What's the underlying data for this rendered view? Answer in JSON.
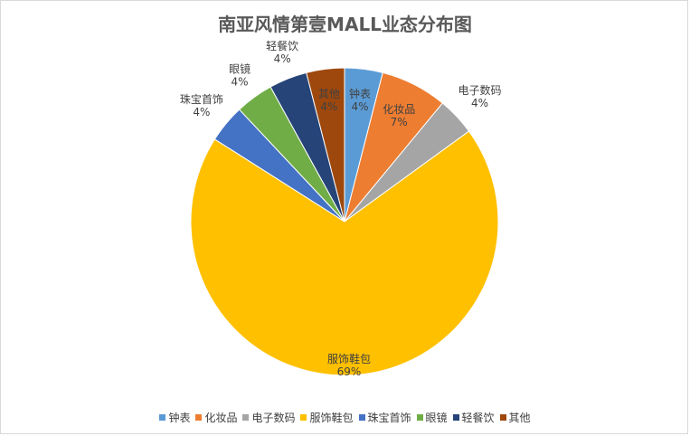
{
  "chart_data": {
    "type": "pie",
    "title": "南亚风情第壹MALL业态分布图",
    "categories": [
      "钟表",
      "化妆品",
      "电子数码",
      "服饰鞋包",
      "珠宝首饰",
      "眼镜",
      "轻餐饮",
      "其他"
    ],
    "values": [
      4,
      7,
      4,
      69,
      4,
      4,
      4,
      4
    ],
    "value_labels": [
      "4%",
      "7%",
      "4%",
      "69%",
      "4%",
      "4%",
      "4%",
      "4%"
    ],
    "colors": [
      "#5b9bd5",
      "#ed7d31",
      "#a5a5a5",
      "#ffc000",
      "#4472c4",
      "#70ad47",
      "#264478",
      "#9e480e"
    ],
    "legend_position": "bottom",
    "start_angle": "top, clockwise"
  }
}
